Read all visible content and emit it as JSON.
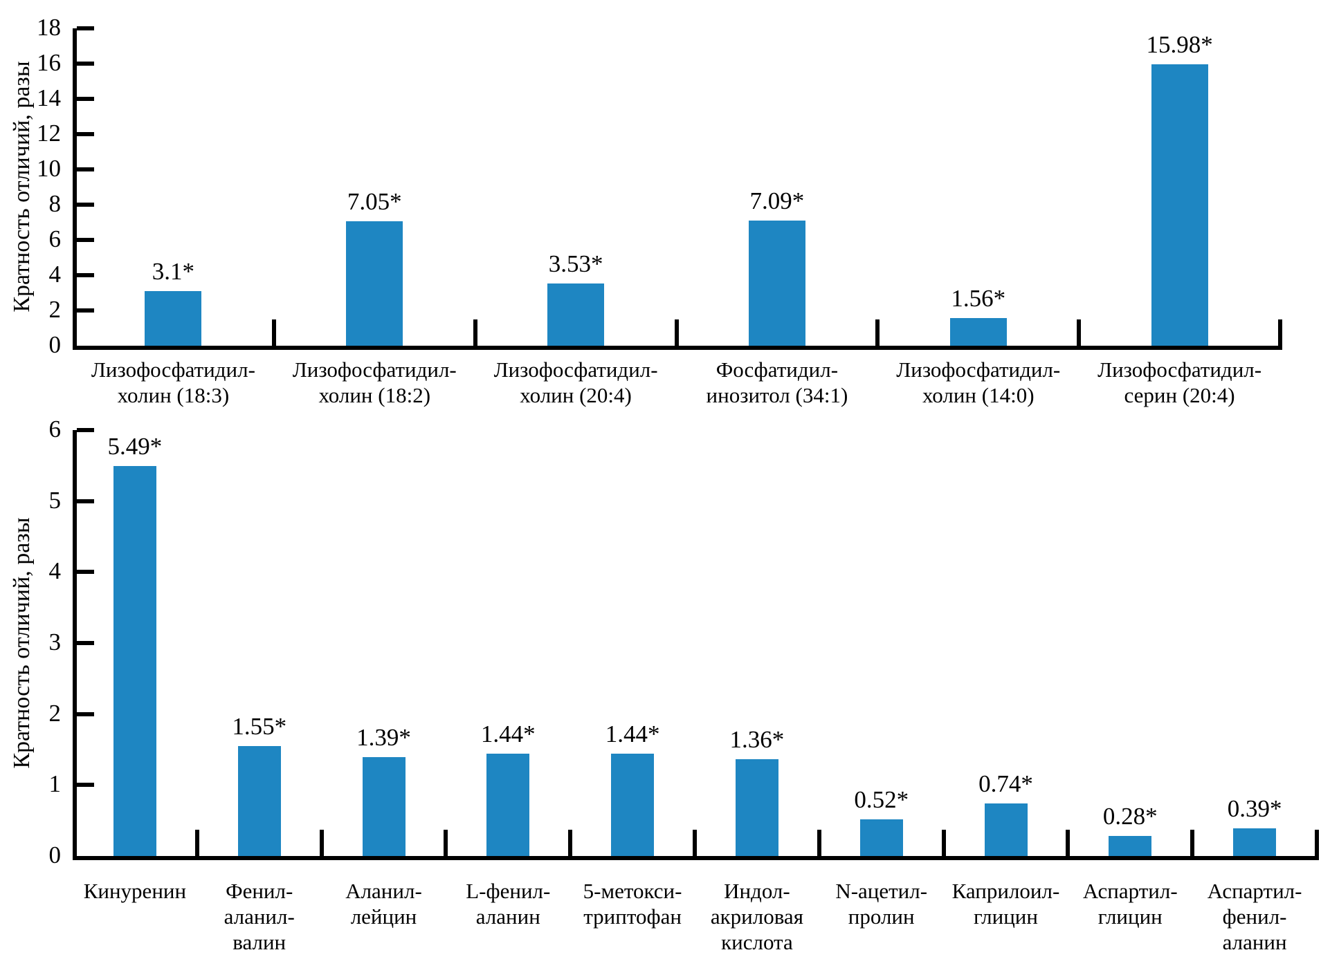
{
  "figure": {
    "background": "#ffffff",
    "text_color": "#000000",
    "axis_color": "#000000"
  },
  "chart_data": [
    {
      "id": "top",
      "type": "bar",
      "title": "",
      "xlabel": "",
      "ylabel": "Кратность отличий, разы",
      "ylim": [
        0,
        18
      ],
      "yticks": [
        0,
        2,
        4,
        6,
        8,
        10,
        12,
        14,
        16,
        18
      ],
      "grid": "off",
      "legend": "none",
      "bar_color": "#1E86C2",
      "categories": [
        [
          "Лизофосфатидил-",
          "холин (18:3)"
        ],
        [
          "Лизофосфатидил-",
          "холин (18:2)"
        ],
        [
          "Лизофосфатидил-",
          "холин (20:4)"
        ],
        [
          "Фосфатидил-",
          "инозитол (34:1)"
        ],
        [
          "Лизофосфатидил-",
          "холин (14:0)"
        ],
        [
          "Лизофосфатидил-",
          "серин (20:4)"
        ]
      ],
      "values": [
        3.1,
        7.05,
        3.53,
        7.09,
        1.56,
        15.98
      ],
      "labels": [
        "3.1*",
        "7.05*",
        "3.53*",
        "7.09*",
        "1.56*",
        "15.98*"
      ]
    },
    {
      "id": "bottom",
      "type": "bar",
      "title": "",
      "xlabel": "",
      "ylabel": "Кратность отличий, разы",
      "ylim": [
        0,
        6
      ],
      "yticks": [
        0,
        1,
        2,
        3,
        4,
        5,
        6
      ],
      "grid": "off",
      "legend": "none",
      "bar_color": "#1E86C2",
      "categories": [
        [
          "Кинуренин"
        ],
        [
          "Фенил-",
          "аланил-",
          "валин"
        ],
        [
          "Аланил-",
          "лейцин"
        ],
        [
          "L-фенил-",
          "аланин"
        ],
        [
          "5-метокси-",
          "триптофан"
        ],
        [
          "Индол-",
          "акриловая",
          "кислота"
        ],
        [
          "N-ацетил-",
          "пролин"
        ],
        [
          "Каприлоил-",
          "глицин"
        ],
        [
          "Аспартил-",
          "глицин"
        ],
        [
          "Аспартил-",
          "фенил-",
          "аланин"
        ]
      ],
      "values": [
        5.49,
        1.55,
        1.39,
        1.44,
        1.44,
        1.36,
        0.52,
        0.74,
        0.28,
        0.39
      ],
      "labels": [
        "5.49*",
        "1.55*",
        "1.39*",
        "1.44*",
        "1.44*",
        "1.36*",
        "0.52*",
        "0.74*",
        "0.28*",
        "0.39*"
      ]
    }
  ]
}
